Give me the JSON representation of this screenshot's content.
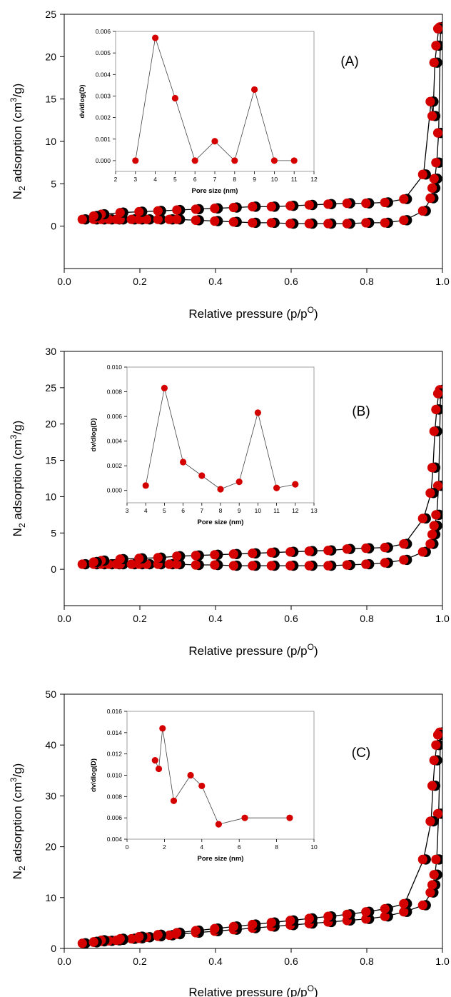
{
  "chart_data": [
    {
      "type": "scatter",
      "panel_label": "(A)",
      "xlabel": "Relative pressure (p/p",
      "xlabel_sup": "O",
      "xlabel_end": ")",
      "ylabel_pre": "N",
      "ylabel_sub": "2",
      "ylabel_mid": " adsorption (cm",
      "ylabel_sup": "3",
      "ylabel_end": "/g)",
      "xlim": [
        0.0,
        1.0
      ],
      "ylim": [
        -5,
        25
      ],
      "xticks": [
        "0.0",
        "0.2",
        "0.4",
        "0.6",
        "0.8",
        "1.0"
      ],
      "yticks": [
        "0",
        "5",
        "10",
        "15",
        "20",
        "25"
      ],
      "colors": {
        "marker_front": "#d40000",
        "marker_back": "#000000",
        "line": "#000000"
      },
      "series": [
        {
          "x": [
            0.05,
            0.08,
            0.1,
            0.12,
            0.14,
            0.15,
            0.18,
            0.2,
            0.22,
            0.25,
            0.28,
            0.3,
            0.35,
            0.4,
            0.45,
            0.5,
            0.55,
            0.6,
            0.65,
            0.7,
            0.75,
            0.8,
            0.85,
            0.9,
            0.95,
            0.97,
            0.975,
            0.98,
            0.985,
            0.99,
            0.995
          ],
          "y": [
            0.8,
            0.8,
            0.8,
            0.8,
            0.8,
            0.8,
            0.8,
            0.8,
            0.8,
            0.8,
            0.8,
            0.8,
            0.7,
            0.6,
            0.5,
            0.4,
            0.4,
            0.3,
            0.3,
            0.3,
            0.3,
            0.4,
            0.4,
            0.7,
            1.8,
            3.3,
            4.5,
            5.6,
            7.5,
            11.0,
            23.5
          ]
        },
        {
          "x": [
            0.995,
            0.99,
            0.985,
            0.98,
            0.975,
            0.97,
            0.95,
            0.9,
            0.85,
            0.8,
            0.75,
            0.7,
            0.65,
            0.6,
            0.55,
            0.5,
            0.45,
            0.4,
            0.35,
            0.3,
            0.25,
            0.2,
            0.15,
            0.1,
            0.08
          ],
          "y": [
            23.5,
            23.3,
            21.3,
            19.3,
            13.0,
            14.7,
            6.1,
            3.2,
            2.8,
            2.7,
            2.7,
            2.6,
            2.5,
            2.4,
            2.3,
            2.3,
            2.2,
            2.1,
            2.0,
            1.9,
            1.8,
            1.7,
            1.6,
            1.4,
            1.2
          ]
        }
      ],
      "inset": {
        "type": "line",
        "xlabel": "Pore size (nm)",
        "ylabel": "dv/dlog(D)",
        "xlim": [
          2,
          12
        ],
        "ylim": [
          -0.0005,
          0.006
        ],
        "xticks": [
          "2",
          "3",
          "4",
          "5",
          "6",
          "7",
          "8",
          "9",
          "10",
          "11",
          "12"
        ],
        "yticks": [
          "0.000",
          "0.001",
          "0.002",
          "0.003",
          "0.004",
          "0.005",
          "0.006"
        ],
        "x": [
          3,
          4,
          5,
          6,
          7,
          8,
          9,
          10,
          11
        ],
        "y": [
          0.0,
          0.0057,
          0.0029,
          0.0,
          0.0009,
          0.0,
          0.0033,
          0.0,
          0.0
        ]
      }
    },
    {
      "type": "scatter",
      "panel_label": "(B)",
      "xlabel": "Relative pressure (p/p",
      "xlabel_sup": "O",
      "xlabel_end": ")",
      "ylabel_pre": "N",
      "ylabel_sub": "2",
      "ylabel_mid": " adsorption (cm",
      "ylabel_sup": "3",
      "ylabel_end": "/g)",
      "xlim": [
        0.0,
        1.0
      ],
      "ylim": [
        -5,
        30
      ],
      "xticks": [
        "0.0",
        "0.2",
        "0.4",
        "0.6",
        "0.8",
        "1.0"
      ],
      "yticks": [
        "0",
        "5",
        "10",
        "15",
        "20",
        "25",
        "30"
      ],
      "colors": {
        "marker_front": "#d40000",
        "marker_back": "#000000",
        "line": "#000000"
      },
      "series": [
        {
          "x": [
            0.05,
            0.08,
            0.1,
            0.12,
            0.14,
            0.15,
            0.18,
            0.2,
            0.22,
            0.25,
            0.28,
            0.3,
            0.35,
            0.4,
            0.45,
            0.5,
            0.55,
            0.6,
            0.65,
            0.7,
            0.75,
            0.8,
            0.85,
            0.9,
            0.95,
            0.97,
            0.975,
            0.98,
            0.985,
            0.99,
            0.995
          ],
          "y": [
            0.7,
            0.7,
            0.7,
            0.7,
            0.7,
            0.7,
            0.7,
            0.7,
            0.7,
            0.7,
            0.7,
            0.7,
            0.6,
            0.6,
            0.5,
            0.5,
            0.5,
            0.5,
            0.5,
            0.5,
            0.6,
            0.7,
            0.9,
            1.3,
            2.4,
            3.5,
            4.8,
            6.0,
            7.5,
            11.5,
            24.7
          ]
        },
        {
          "x": [
            0.995,
            0.99,
            0.985,
            0.98,
            0.975,
            0.97,
            0.95,
            0.9,
            0.85,
            0.8,
            0.75,
            0.7,
            0.65,
            0.6,
            0.55,
            0.5,
            0.45,
            0.4,
            0.35,
            0.3,
            0.25,
            0.2,
            0.15,
            0.1,
            0.08
          ],
          "y": [
            24.7,
            24.2,
            22.0,
            19.0,
            14.0,
            10.5,
            7.0,
            3.5,
            3.0,
            2.9,
            2.8,
            2.6,
            2.5,
            2.4,
            2.3,
            2.2,
            2.1,
            2.0,
            1.9,
            1.8,
            1.6,
            1.5,
            1.4,
            1.2,
            1.0
          ]
        }
      ],
      "inset": {
        "type": "line",
        "xlabel": "Pore size (nm)",
        "ylabel": "dv/dlog(D)",
        "xlim": [
          3,
          13
        ],
        "ylim": [
          -0.001,
          0.01
        ],
        "xticks": [
          "3",
          "4",
          "5",
          "6",
          "7",
          "8",
          "9",
          "10",
          "11",
          "12",
          "13"
        ],
        "yticks": [
          "0.000",
          "0.002",
          "0.004",
          "0.006",
          "0.008",
          "0.010"
        ],
        "x": [
          4,
          5,
          6,
          7,
          8,
          9,
          10,
          11,
          12
        ],
        "y": [
          0.0004,
          0.0083,
          0.0023,
          0.0012,
          0.0001,
          0.0007,
          0.0063,
          0.0002,
          0.0005
        ]
      }
    },
    {
      "type": "scatter",
      "panel_label": "(C)",
      "xlabel": "Relative pressure (p/p",
      "xlabel_sup": "O",
      "xlabel_end": ")",
      "ylabel_pre": "N",
      "ylabel_sub": "2",
      "ylabel_mid": " adsorption (cm",
      "ylabel_sup": "3",
      "ylabel_end": "/g)",
      "xlim": [
        0.0,
        1.0
      ],
      "ylim": [
        0,
        50
      ],
      "xticks": [
        "0.0",
        "0.2",
        "0.4",
        "0.6",
        "0.8",
        "1.0"
      ],
      "yticks": [
        "0",
        "10",
        "20",
        "30",
        "40",
        "50"
      ],
      "colors": {
        "marker_front": "#d40000",
        "marker_back": "#000000",
        "line": "#000000"
      },
      "series": [
        {
          "x": [
            0.05,
            0.08,
            0.1,
            0.12,
            0.14,
            0.15,
            0.18,
            0.2,
            0.22,
            0.25,
            0.28,
            0.3,
            0.35,
            0.4,
            0.45,
            0.5,
            0.55,
            0.6,
            0.65,
            0.7,
            0.75,
            0.8,
            0.85,
            0.9,
            0.95,
            0.97,
            0.975,
            0.98,
            0.985,
            0.99,
            0.995
          ],
          "y": [
            1.0,
            1.2,
            1.4,
            1.5,
            1.6,
            1.7,
            1.9,
            2.0,
            2.2,
            2.4,
            2.6,
            2.8,
            3.1,
            3.4,
            3.7,
            4.0,
            4.3,
            4.6,
            4.9,
            5.2,
            5.5,
            5.8,
            6.3,
            7.2,
            8.5,
            11.0,
            12.5,
            14.5,
            17.5,
            26.5,
            42.5
          ]
        },
        {
          "x": [
            0.995,
            0.99,
            0.985,
            0.98,
            0.975,
            0.97,
            0.95,
            0.9,
            0.85,
            0.8,
            0.75,
            0.7,
            0.65,
            0.6,
            0.55,
            0.5,
            0.45,
            0.4,
            0.35,
            0.3,
            0.25,
            0.2,
            0.15,
            0.1,
            0.08
          ],
          "y": [
            42.5,
            42.0,
            40.0,
            37.0,
            32.0,
            25.0,
            17.5,
            8.8,
            7.8,
            7.2,
            6.7,
            6.3,
            5.9,
            5.5,
            5.1,
            4.7,
            4.3,
            3.9,
            3.5,
            3.1,
            2.7,
            2.3,
            1.9,
            1.6,
            1.3
          ]
        }
      ],
      "inset": {
        "type": "line",
        "xlabel": "Pore size (nm)",
        "ylabel": "dv/dlog(D)",
        "xlim": [
          0,
          10
        ],
        "ylim": [
          0.004,
          0.016
        ],
        "xticks": [
          "0",
          "2",
          "4",
          "6",
          "8",
          "10"
        ],
        "yticks": [
          "0.004",
          "0.006",
          "0.008",
          "0.010",
          "0.012",
          "0.014",
          "0.016"
        ],
        "x": [
          1.5,
          1.7,
          1.9,
          2.5,
          3.4,
          4.0,
          4.9,
          6.3,
          8.7
        ],
        "y": [
          0.0114,
          0.0106,
          0.0144,
          0.0076,
          0.01,
          0.009,
          0.0054,
          0.006,
          0.006
        ]
      }
    }
  ]
}
